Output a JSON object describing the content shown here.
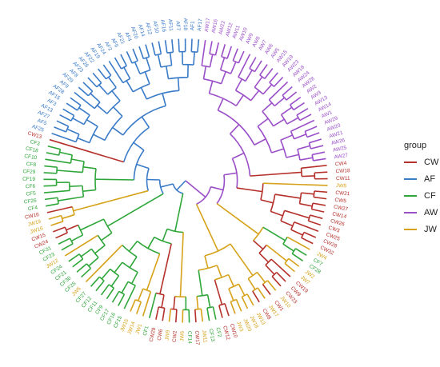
{
  "leaves": [
    "AW17",
    "AW16",
    "AW22",
    "AW12",
    "AW11",
    "AW10",
    "AW9",
    "AW8",
    "AW7",
    "AW6",
    "AW5",
    "AW15",
    "AW19",
    "AW23",
    "AW18",
    "AW24",
    "AW28",
    "AW2",
    "AW3",
    "AW13",
    "AW14",
    "AW1",
    "AW29",
    "AW20",
    "AW21",
    "AW26",
    "AW25",
    "AW27",
    "CW4",
    "CW18",
    "CW11",
    "JW8",
    "CW21",
    "CW5",
    "CW27",
    "CW14",
    "CW26",
    "CW3",
    "CW25",
    "CW28",
    "CW32",
    "JW4",
    "CF7",
    "CF28",
    "JW2",
    "JW7",
    "CW19",
    "CW9",
    "CW23",
    "JW10",
    "CW1",
    "JW17",
    "CW8",
    "JW13",
    "JW18",
    "JW20",
    "JW3",
    "CW10",
    "CW12",
    "CF2",
    "CF13",
    "JW11",
    "CW17",
    "CF14",
    "JW6",
    "CW2",
    "JW9",
    "CW6",
    "CW29",
    "CF1",
    "JW1",
    "JW14",
    "JW15",
    "CF15",
    "CF16",
    "CF17",
    "CF9",
    "CF11",
    "CF12",
    "CF27",
    "JW5",
    "CF25",
    "CF30",
    "CF21",
    "CF24",
    "JW12",
    "CF23",
    "CF31",
    "CW24",
    "CW15",
    "JW16",
    "JW19",
    "CW16",
    "CF4",
    "CF26",
    "CF5",
    "CF6",
    "CF19",
    "CF29",
    "CF8",
    "CF10",
    "CF18",
    "CF3",
    "CW13",
    "AF25",
    "AF5",
    "AF27",
    "AF13",
    "AF3",
    "AF15",
    "AF28",
    "AF9",
    "AF29",
    "AF8",
    "AF23",
    "AF26",
    "AF22",
    "AF19",
    "AF24",
    "AF2",
    "AF6",
    "AF21",
    "AF4",
    "AF20",
    "AF14",
    "AF12",
    "AF10",
    "AF16",
    "AF11",
    "AF7",
    "AF18",
    "AF1",
    "AF17"
  ],
  "legend": {
    "title": "group",
    "groups": [
      {
        "name": "CW",
        "color": "#b5302a"
      },
      {
        "name": "AF",
        "color": "#3a7bc8"
      },
      {
        "name": "CF",
        "color": "#2fa63a"
      },
      {
        "name": "AW",
        "color": "#9a4fc8"
      },
      {
        "name": "JW",
        "color": "#d6a21a"
      }
    ]
  }
}
